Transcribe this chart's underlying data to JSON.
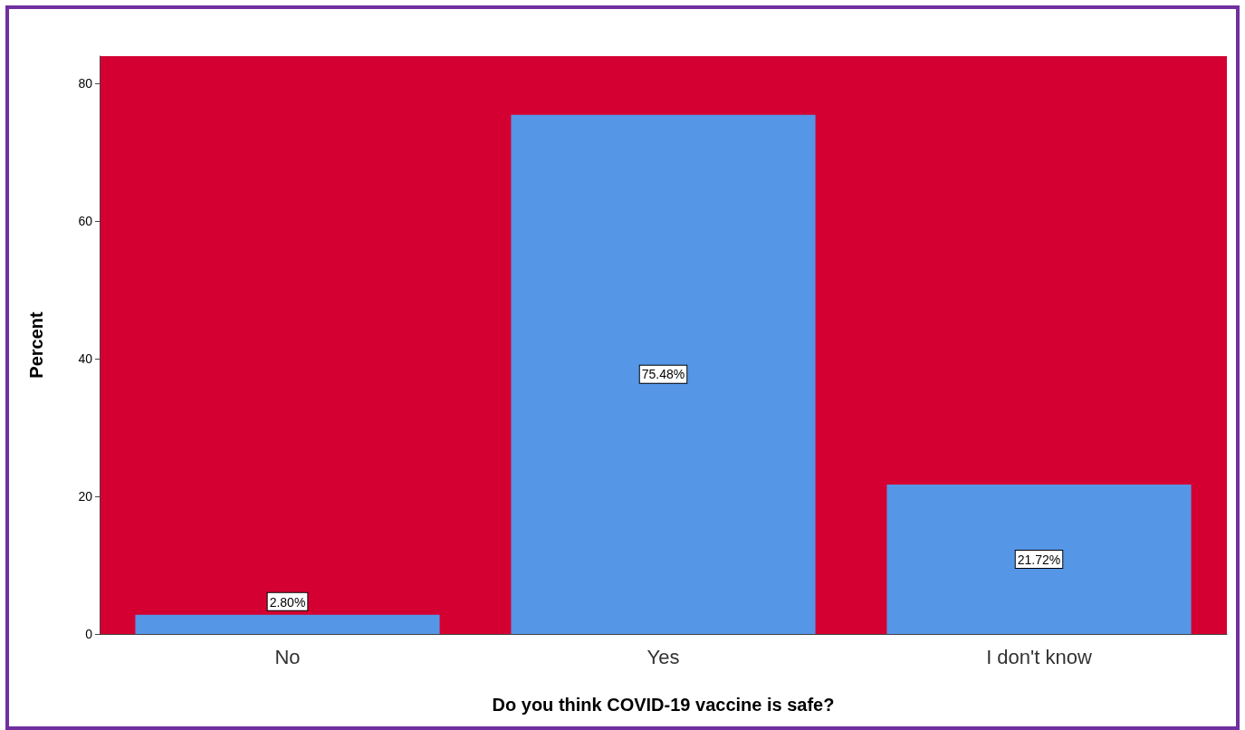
{
  "chart_data": {
    "type": "bar",
    "xlabel": "Do you think COVID-19 vaccine is safe?",
    "ylabel": "Percent",
    "categories": [
      "No",
      "Yes",
      "I don't know"
    ],
    "values": [
      2.8,
      75.48,
      21.72
    ],
    "value_labels": [
      "2.80%",
      "75.48%",
      "21.72%"
    ],
    "color": "#5596e6",
    "ylim": [
      0,
      84
    ],
    "yticks": [
      0,
      20,
      40,
      60,
      80
    ],
    "grid": false
  }
}
